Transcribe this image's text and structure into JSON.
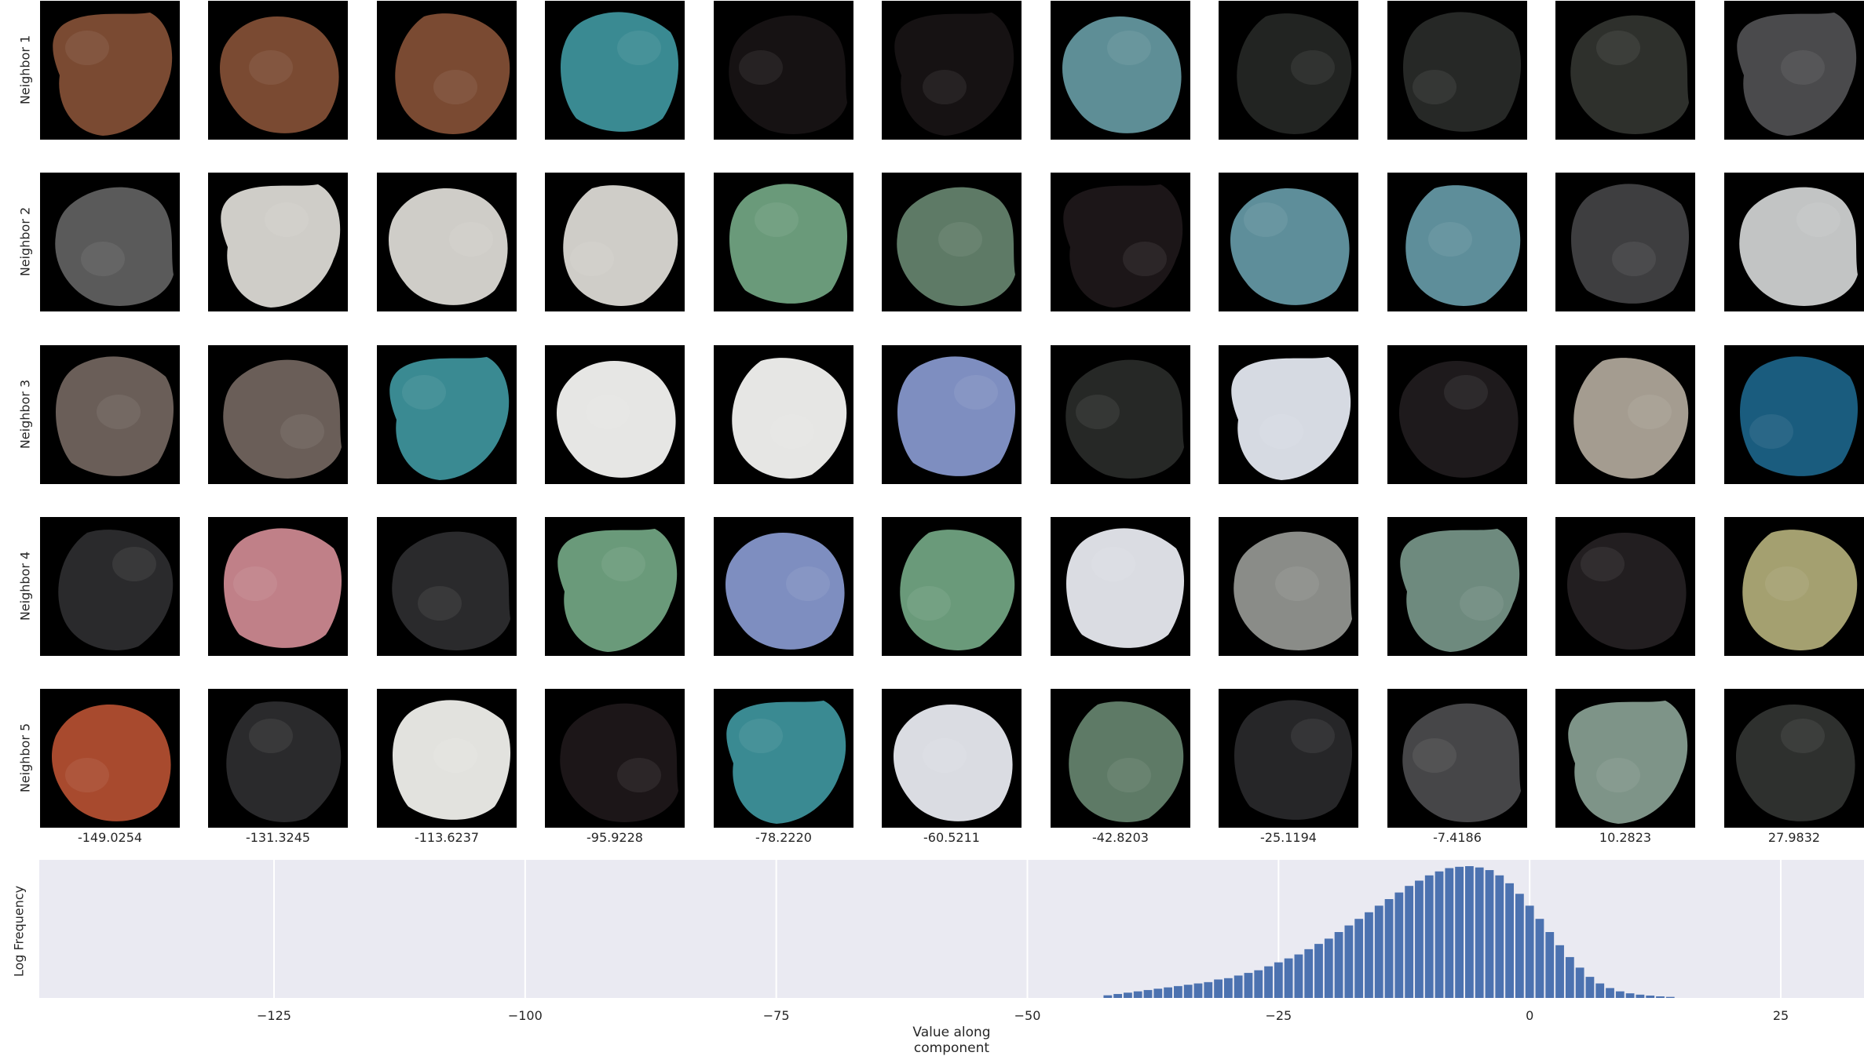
{
  "row_labels": [
    "Neighbor 1",
    "Neighbor 2",
    "Neighbor 3",
    "Neighbor 4",
    "Neighbor 5"
  ],
  "column_labels": [
    "-149.0254",
    "-131.3245",
    "-113.6237",
    "-95.9228",
    "-78.2220",
    "-60.5211",
    "-42.8203",
    "-25.1194",
    "-7.4186",
    "10.2823",
    "27.9832"
  ],
  "tile_colors": [
    [
      "#7a4a32",
      "#7a4a32",
      "#7a4a32",
      "#3a8a92",
      "#161213",
      "#161213",
      "#5e8e96",
      "#222422",
      "#262826",
      "#2e302c",
      "#4a4a4c"
    ],
    [
      "#5a5a5a",
      "#cfcdc8",
      "#cfcdc8",
      "#cfcdc8",
      "#6a9a7a",
      "#5e7a66",
      "#1c1618",
      "#5e8e9a",
      "#5e8e9a",
      "#3e3e40",
      "#c2c4c4"
    ],
    [
      "#6a5e58",
      "#6a5e58",
      "#3a8a92",
      "#e6e6e4",
      "#e6e6e4",
      "#7e8ec0",
      "#262826",
      "#d6dae2",
      "#1e1a1c",
      "#a49c90",
      "#1a5c7e"
    ],
    [
      "#2a2a2c",
      "#c08088",
      "#2a2a2c",
      "#6a9a7a",
      "#7e8ec0",
      "#6a9a7a",
      "#dadce2",
      "#8a8c88",
      "#6e8a7e",
      "#221e20",
      "#a4a070"
    ],
    [
      "#a84a2e",
      "#2a2a2c",
      "#e2e2de",
      "#1c1618",
      "#3a8a92",
      "#dadce2",
      "#5e7a66",
      "#262628",
      "#464648",
      "#7e9488",
      "#2e302e"
    ]
  ],
  "chart_data": {
    "type": "bar",
    "xlabel": "Value along component",
    "ylabel": "Log Frequency",
    "xlim": [
      -150,
      30
    ],
    "xticks": [
      -125,
      -100,
      -75,
      -50,
      -25,
      0,
      25
    ],
    "xtick_labels": [
      "−125",
      "−100",
      "−75",
      "−50",
      "−25",
      "0",
      "25"
    ],
    "grid": true,
    "bar_color": "#4c72b0",
    "bin_width": 1.0,
    "bins": [
      {
        "x": -42,
        "y": 0.02
      },
      {
        "x": -41,
        "y": 0.03
      },
      {
        "x": -40,
        "y": 0.04
      },
      {
        "x": -39,
        "y": 0.05
      },
      {
        "x": -38,
        "y": 0.06
      },
      {
        "x": -37,
        "y": 0.07
      },
      {
        "x": -36,
        "y": 0.08
      },
      {
        "x": -35,
        "y": 0.09
      },
      {
        "x": -34,
        "y": 0.1
      },
      {
        "x": -33,
        "y": 0.11
      },
      {
        "x": -32,
        "y": 0.12
      },
      {
        "x": -31,
        "y": 0.14
      },
      {
        "x": -30,
        "y": 0.15
      },
      {
        "x": -29,
        "y": 0.17
      },
      {
        "x": -28,
        "y": 0.19
      },
      {
        "x": -27,
        "y": 0.21
      },
      {
        "x": -26,
        "y": 0.24
      },
      {
        "x": -25,
        "y": 0.27
      },
      {
        "x": -24,
        "y": 0.3
      },
      {
        "x": -23,
        "y": 0.33
      },
      {
        "x": -22,
        "y": 0.37
      },
      {
        "x": -21,
        "y": 0.41
      },
      {
        "x": -20,
        "y": 0.45
      },
      {
        "x": -19,
        "y": 0.5
      },
      {
        "x": -18,
        "y": 0.55
      },
      {
        "x": -17,
        "y": 0.6
      },
      {
        "x": -16,
        "y": 0.65
      },
      {
        "x": -15,
        "y": 0.7
      },
      {
        "x": -14,
        "y": 0.75
      },
      {
        "x": -13,
        "y": 0.8
      },
      {
        "x": -12,
        "y": 0.85
      },
      {
        "x": -11,
        "y": 0.89
      },
      {
        "x": -10,
        "y": 0.93
      },
      {
        "x": -9,
        "y": 0.96
      },
      {
        "x": -8,
        "y": 0.985
      },
      {
        "x": -7,
        "y": 0.995
      },
      {
        "x": -6,
        "y": 1.0
      },
      {
        "x": -5,
        "y": 0.99
      },
      {
        "x": -4,
        "y": 0.97
      },
      {
        "x": -3,
        "y": 0.93
      },
      {
        "x": -2,
        "y": 0.87
      },
      {
        "x": -1,
        "y": 0.79
      },
      {
        "x": 0,
        "y": 0.7
      },
      {
        "x": 1,
        "y": 0.6
      },
      {
        "x": 2,
        "y": 0.5
      },
      {
        "x": 3,
        "y": 0.4
      },
      {
        "x": 4,
        "y": 0.31
      },
      {
        "x": 5,
        "y": 0.23
      },
      {
        "x": 6,
        "y": 0.16
      },
      {
        "x": 7,
        "y": 0.11
      },
      {
        "x": 8,
        "y": 0.075
      },
      {
        "x": 9,
        "y": 0.05
      },
      {
        "x": 10,
        "y": 0.035
      },
      {
        "x": 11,
        "y": 0.025
      },
      {
        "x": 12,
        "y": 0.018
      },
      {
        "x": 13,
        "y": 0.012
      },
      {
        "x": 14,
        "y": 0.008
      }
    ]
  }
}
